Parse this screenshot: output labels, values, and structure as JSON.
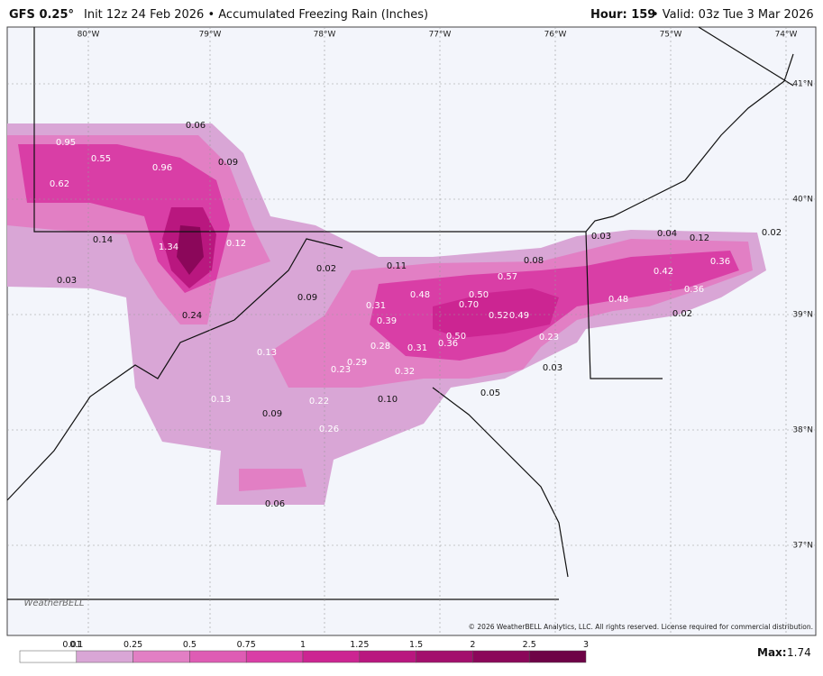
{
  "header": {
    "model": "GFS 0.25°",
    "subtitle": "Init 12z 24 Feb 2026 • Accumulated Freezing Rain (Inches)",
    "hour": "Hour: 159",
    "valid": "• Valid: 03z Tue 3 Mar 2026"
  },
  "longitudes": [
    "80°W",
    "79°W",
    "78°W",
    "77°W",
    "76°W",
    "75°W",
    "74°W"
  ],
  "latitudes": [
    "41°N",
    "40°N",
    "39°N",
    "38°N",
    "37°N"
  ],
  "points": [
    "0.06",
    "0.95",
    "0.55",
    "0.96",
    "0.09",
    "0.62",
    "1.34",
    "0.12",
    "0.14",
    "0.03",
    "0.24",
    "0.02",
    "0.09",
    "0.11",
    "0.48",
    "0.31",
    "0.39",
    "0.50",
    "0.70",
    "0.08",
    "0.57",
    "0.52",
    "0.49",
    "0.23",
    "0.28",
    "0.31",
    "0.50",
    "0.36",
    "0.29",
    "0.23",
    "0.32",
    "0.03",
    "0.13",
    "0.13",
    "0.22",
    "0.10",
    "0.05",
    "0.09",
    "0.26",
    "0.06",
    "0.03",
    "0.04",
    "0.12",
    "0.02",
    "0.42",
    "0.36",
    "0.48",
    "0.36",
    "0.02"
  ],
  "colorbar": {
    "labels": [
      "0.01",
      "0.1",
      "0.25",
      "0.5",
      "0.75",
      "1",
      "1.25",
      "1.5",
      "2",
      "2.5",
      "3"
    ],
    "colors": [
      "#ffffff",
      "#d9a6d6",
      "#e27fc4",
      "#de5cb4",
      "#d93ea6",
      "#cc2592",
      "#b9177f",
      "#a30f6d",
      "#8b075a",
      "#6e0346"
    ]
  },
  "max": {
    "label": "Max:",
    "value": "1.74"
  },
  "logo": "WeatherBELL",
  "copyright": "© 2026 WeatherBELL Analytics, LLC. All rights reserved. License required for commercial distribution."
}
